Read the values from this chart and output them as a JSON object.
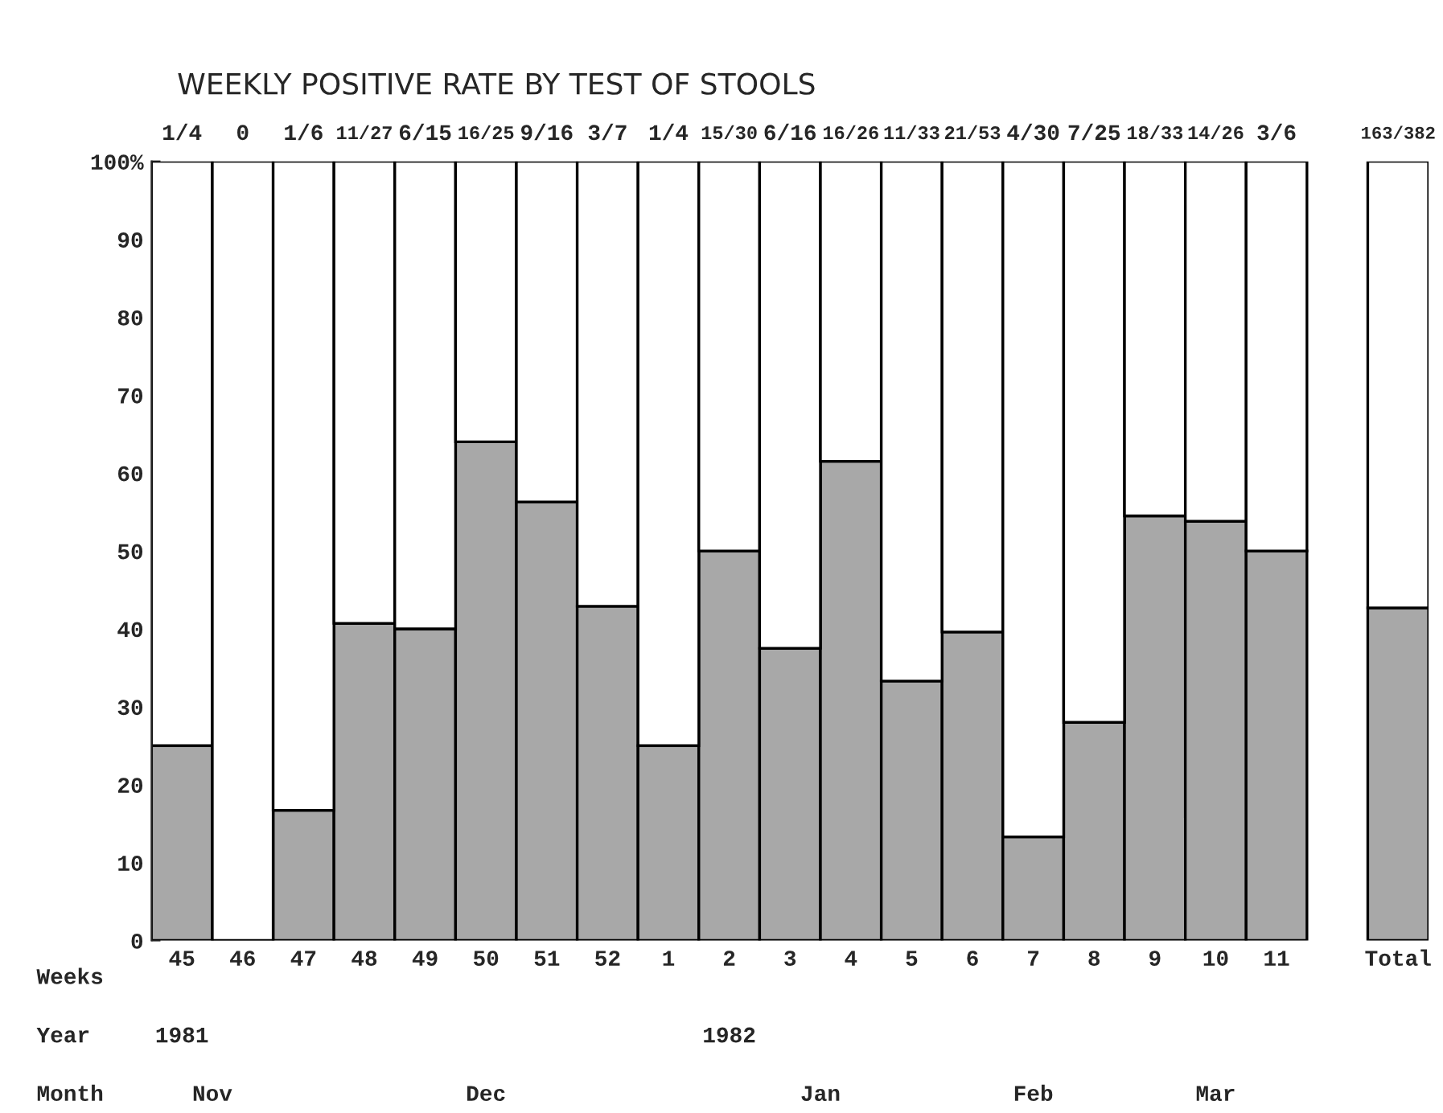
{
  "chart_data": {
    "type": "bar",
    "title": "WEEKLY POSITIVE RATE BY TEST OF STOOLS",
    "xlabel": "Weeks",
    "categories": [
      "45",
      "46",
      "47",
      "48",
      "49",
      "50",
      "51",
      "52",
      "1",
      "2",
      "3",
      "4",
      "5",
      "6",
      "7",
      "8",
      "9",
      "10",
      "11",
      "Total"
    ],
    "stacked": true,
    "series": [
      {
        "color": "#a8a8a8",
        "values": [
          25,
          0,
          16.7,
          40.7,
          40,
          64,
          56.3,
          42.9,
          25,
          50,
          37.5,
          61.5,
          33.3,
          39.6,
          13.3,
          28,
          54.5,
          53.8,
          50,
          42.7
        ]
      },
      {
        "color": "#ffffff",
        "values": [
          75,
          100,
          83.3,
          59.3,
          60,
          36,
          43.7,
          57.1,
          75,
          50,
          62.5,
          38.5,
          66.7,
          60.4,
          86.7,
          72,
          45.5,
          46.2,
          50,
          57.3
        ]
      }
    ],
    "ylim": [
      0,
      100
    ],
    "yticks": [
      0,
      10,
      20,
      30,
      40,
      50,
      60,
      70,
      80,
      90,
      {
        "value": 100,
        "label": "100%"
      }
    ],
    "grid": false,
    "legend": false,
    "annotations": [
      "Year",
      "1981",
      "1982",
      "Month",
      "Nov",
      "Dec",
      "Jan",
      "Feb",
      "Mar",
      "1/4",
      "0",
      "1/6",
      "11/27",
      "6/15",
      "16/25",
      "9/16",
      "3/7",
      "1/4",
      "15/30",
      "6/16",
      "16/26",
      "11/33",
      "21/53",
      "4/30",
      "7/25",
      "18/33",
      "14/26",
      "3/6",
      "163/382"
    ]
  }
}
